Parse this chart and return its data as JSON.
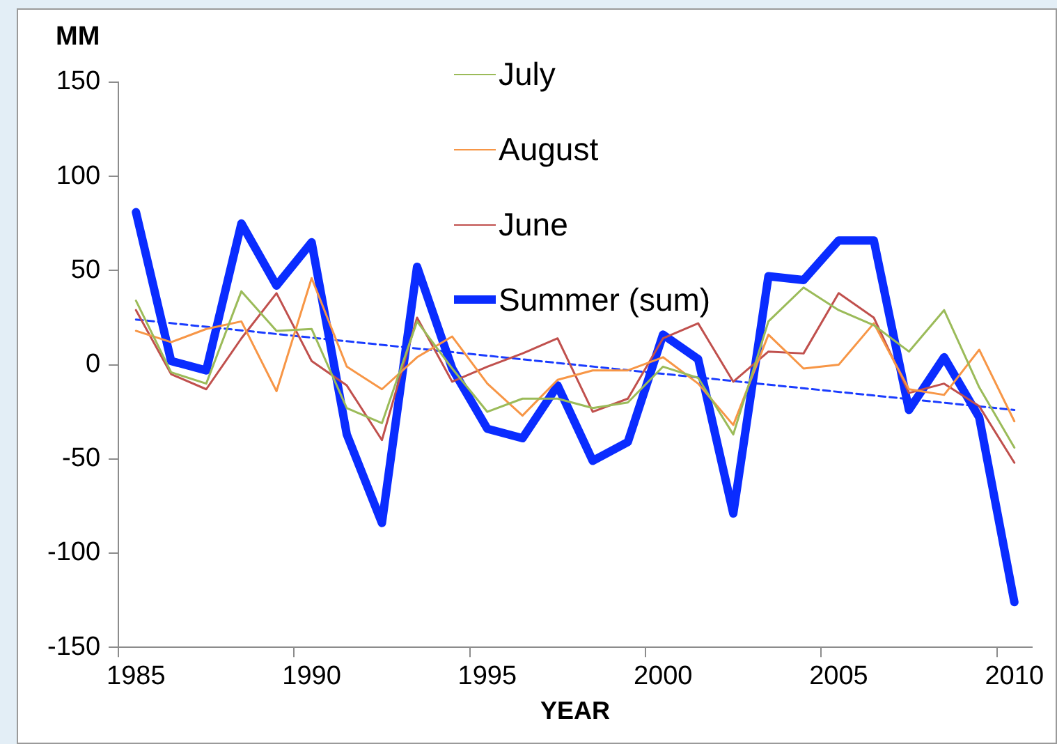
{
  "chart_data": {
    "type": "line",
    "ylabel": "MM",
    "xlabel": "YEAR",
    "categories": [
      "1985",
      null,
      null,
      null,
      null,
      "1990",
      null,
      null,
      null,
      null,
      "1995",
      null,
      null,
      null,
      null,
      "2000",
      null,
      null,
      null,
      null,
      "2005",
      null,
      null,
      null,
      null,
      "2010"
    ],
    "ylim": [
      -150,
      150
    ],
    "yticks": [
      -150,
      -100,
      -50,
      0,
      50,
      100,
      150
    ],
    "grid": false,
    "legend": "top",
    "marker": "none",
    "series": [
      {
        "name": "July",
        "color": "#9bbb59",
        "values": [
          34,
          -4,
          -10,
          39,
          18,
          19,
          -23,
          -31,
          23,
          -2,
          -25,
          -18,
          -18,
          -23,
          -20,
          -1,
          -7,
          -37,
          23,
          41,
          29,
          21,
          7,
          29,
          -12,
          -44
        ]
      },
      {
        "name": "August",
        "color": "#f79646",
        "values": [
          18,
          12,
          19,
          23,
          -14,
          46,
          -1,
          -13,
          4,
          15,
          -10,
          -27,
          -8,
          -3,
          -3,
          4,
          -10,
          -32,
          16,
          -2,
          0,
          22,
          -13,
          -16,
          8,
          -30
        ]
      },
      {
        "name": "June",
        "color": "#c0504d",
        "values": [
          29,
          -5,
          -13,
          14,
          38,
          2,
          -11,
          -40,
          25,
          -9,
          -1,
          6,
          14,
          -25,
          -18,
          14,
          22,
          -9,
          7,
          6,
          38,
          25,
          -15,
          -10,
          -22,
          -52
        ]
      },
      {
        "name": "Summer (sum)",
        "color": "#0a2cff",
        "values": [
          81,
          2,
          -3,
          75,
          42,
          65,
          -37,
          -84,
          52,
          -2,
          -34,
          -39,
          -11,
          -51,
          -41,
          16,
          3,
          -79,
          47,
          45,
          66,
          66,
          -24,
          4,
          -28,
          -126
        ]
      },
      {
        "type": "line",
        "color": "#1a3cff",
        "line_style": "dashed",
        "values": [
          24,
          null,
          null,
          null,
          null,
          null,
          null,
          null,
          null,
          null,
          null,
          null,
          null,
          null,
          null,
          null,
          null,
          null,
          null,
          null,
          null,
          null,
          null,
          null,
          null,
          -24
        ]
      }
    ]
  }
}
